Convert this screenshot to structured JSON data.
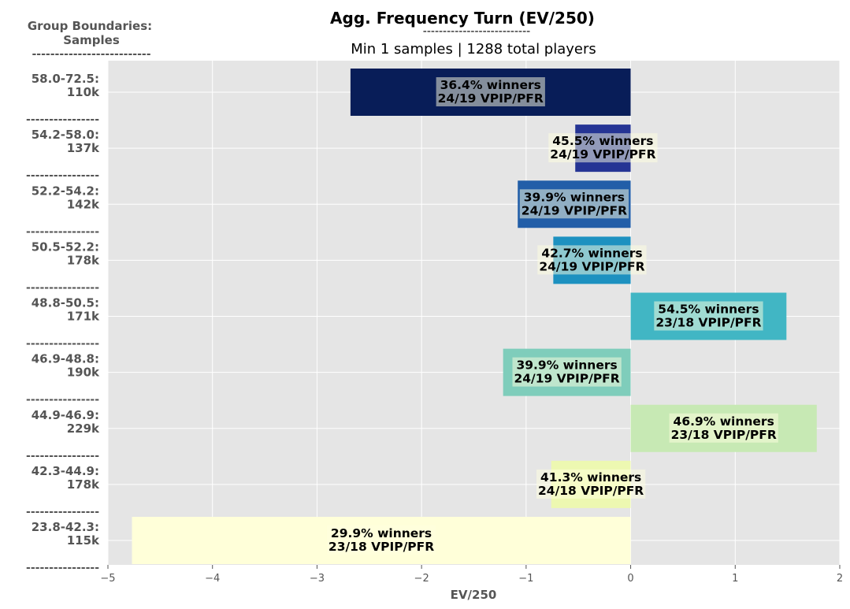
{
  "chart_data": {
    "type": "bar",
    "orientation": "horizontal",
    "title": "Agg. Frequency Turn (EV/250)",
    "title_underline": "---------------------------",
    "subtitle": "Min 1 samples | 1288 total players",
    "yaxis_header_line1": "Group Boundaries:",
    "yaxis_header_line2": "Samples",
    "yaxis_header_underline": "--------------------------",
    "category_separator": "----------------",
    "xlabel": "EV/250",
    "xlim": [
      -5,
      2
    ],
    "xticks": [
      "−5",
      "−4",
      "−3",
      "−2",
      "−1",
      "0",
      "1",
      "2"
    ],
    "xtick_values": [
      -5,
      -4,
      -3,
      -2,
      -1,
      0,
      1,
      2
    ],
    "grid": true,
    "categories": [
      {
        "range": "58.0-72.5:",
        "samples": "110k",
        "value": -2.68,
        "winners": "36.4% winners",
        "vpip_pfr": "24/19 VPIP/PFR",
        "color": "#081d58"
      },
      {
        "range": "54.2-58.0:",
        "samples": "137k",
        "value": -0.53,
        "winners": "45.5% winners",
        "vpip_pfr": "24/19 VPIP/PFR",
        "color": "#253494"
      },
      {
        "range": "52.2-54.2:",
        "samples": "142k",
        "value": -1.08,
        "winners": "39.9% winners",
        "vpip_pfr": "24/19 VPIP/PFR",
        "color": "#225ea8"
      },
      {
        "range": "50.5-52.2:",
        "samples": "178k",
        "value": -0.74,
        "winners": "42.7% winners",
        "vpip_pfr": "24/19 VPIP/PFR",
        "color": "#1d91c0"
      },
      {
        "range": "48.8-50.5:",
        "samples": "171k",
        "value": 1.49,
        "winners": "54.5% winners",
        "vpip_pfr": "23/18 VPIP/PFR",
        "color": "#41b6c4"
      },
      {
        "range": "46.9-48.8:",
        "samples": "190k",
        "value": -1.22,
        "winners": "39.9% winners",
        "vpip_pfr": "24/19 VPIP/PFR",
        "color": "#7fcdbb"
      },
      {
        "range": "44.9-46.9:",
        "samples": "229k",
        "value": 1.78,
        "winners": "46.9% winners",
        "vpip_pfr": "23/18 VPIP/PFR",
        "color": "#c7e9b4"
      },
      {
        "range": "42.3-44.9:",
        "samples": "178k",
        "value": -0.76,
        "winners": "41.3% winners",
        "vpip_pfr": "24/18 VPIP/PFR",
        "color": "#edf8b1"
      },
      {
        "range": "23.8-42.3:",
        "samples": "115k",
        "value": -4.77,
        "winners": "29.9% winners",
        "vpip_pfr": "23/18 VPIP/PFR",
        "color": "#ffffd9"
      }
    ]
  }
}
